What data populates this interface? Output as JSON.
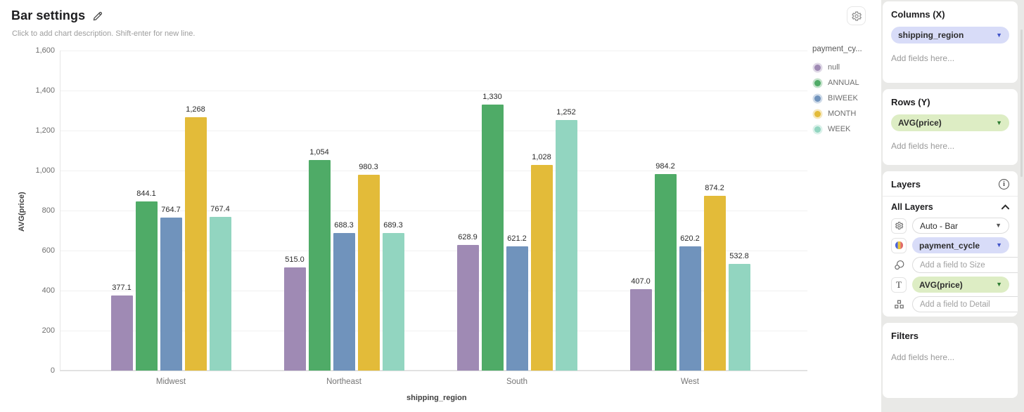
{
  "header": {
    "title": "Bar settings",
    "subtitle": "Click to add chart description. Shift-enter for new line."
  },
  "chart_data": {
    "type": "bar",
    "title": "Bar settings",
    "xlabel": "shipping_region",
    "ylabel": "AVG(price)",
    "ylim": [
      0,
      1600
    ],
    "ytick_step": 200,
    "yticks": [
      "0",
      "200",
      "400",
      "600",
      "800",
      "1,000",
      "1,200",
      "1,400",
      "1,600"
    ],
    "grid": true,
    "legend_title": "payment_cy...",
    "legend_position": "right",
    "categories": [
      "Midwest",
      "Northeast",
      "South",
      "West"
    ],
    "series": [
      {
        "name": "null",
        "color": "#9f8ab4",
        "values": [
          377.1,
          515.0,
          628.9,
          407.0
        ],
        "labels": [
          "377.1",
          "515.0",
          "628.9",
          "407.0"
        ]
      },
      {
        "name": "ANNUAL",
        "color": "#4fab67",
        "values": [
          844.1,
          1054,
          1330,
          984.2
        ],
        "labels": [
          "844.1",
          "1,054",
          "1,330",
          "984.2"
        ]
      },
      {
        "name": "BIWEEK",
        "color": "#7093bc",
        "values": [
          764.7,
          688.3,
          621.2,
          620.2
        ],
        "labels": [
          "764.7",
          "688.3",
          "621.2",
          "620.2"
        ]
      },
      {
        "name": "MONTH",
        "color": "#e3bb39",
        "values": [
          1268,
          980.3,
          1028,
          874.2
        ],
        "labels": [
          "1,268",
          "980.3",
          "1,028",
          "874.2"
        ]
      },
      {
        "name": "WEEK",
        "color": "#92d5c0",
        "values": [
          767.4,
          689.3,
          1252,
          532.8
        ],
        "labels": [
          "767.4",
          "689.3",
          "1,252",
          "532.8"
        ]
      }
    ]
  },
  "sidebar": {
    "columns_panel": {
      "title": "Columns (X)",
      "chip": "shipping_region",
      "placeholder": "Add fields here..."
    },
    "rows_panel": {
      "title": "Rows (Y)",
      "chip": "AVG(price)",
      "placeholder": "Add fields here..."
    },
    "layers_panel": {
      "title": "Layers",
      "group_title": "All Layers",
      "mark_select": "Auto - Bar",
      "color_chip": "payment_cycle",
      "size_placeholder": "Add a field to Size",
      "text_chip": "AVG(price)",
      "detail_placeholder": "Add a field to Detail"
    },
    "filters_panel": {
      "title": "Filters",
      "placeholder": "Add fields here..."
    }
  },
  "colors": {
    "chip_lavender": "#d8dcf8",
    "chip_green": "#ddedc4",
    "sidebar_bg": "#e9e9e7",
    "series_purple": "#9f8ab4",
    "series_green": "#4fab67",
    "series_blue": "#7093bc",
    "series_gold": "#e3bb39",
    "series_teal": "#92d5c0"
  }
}
